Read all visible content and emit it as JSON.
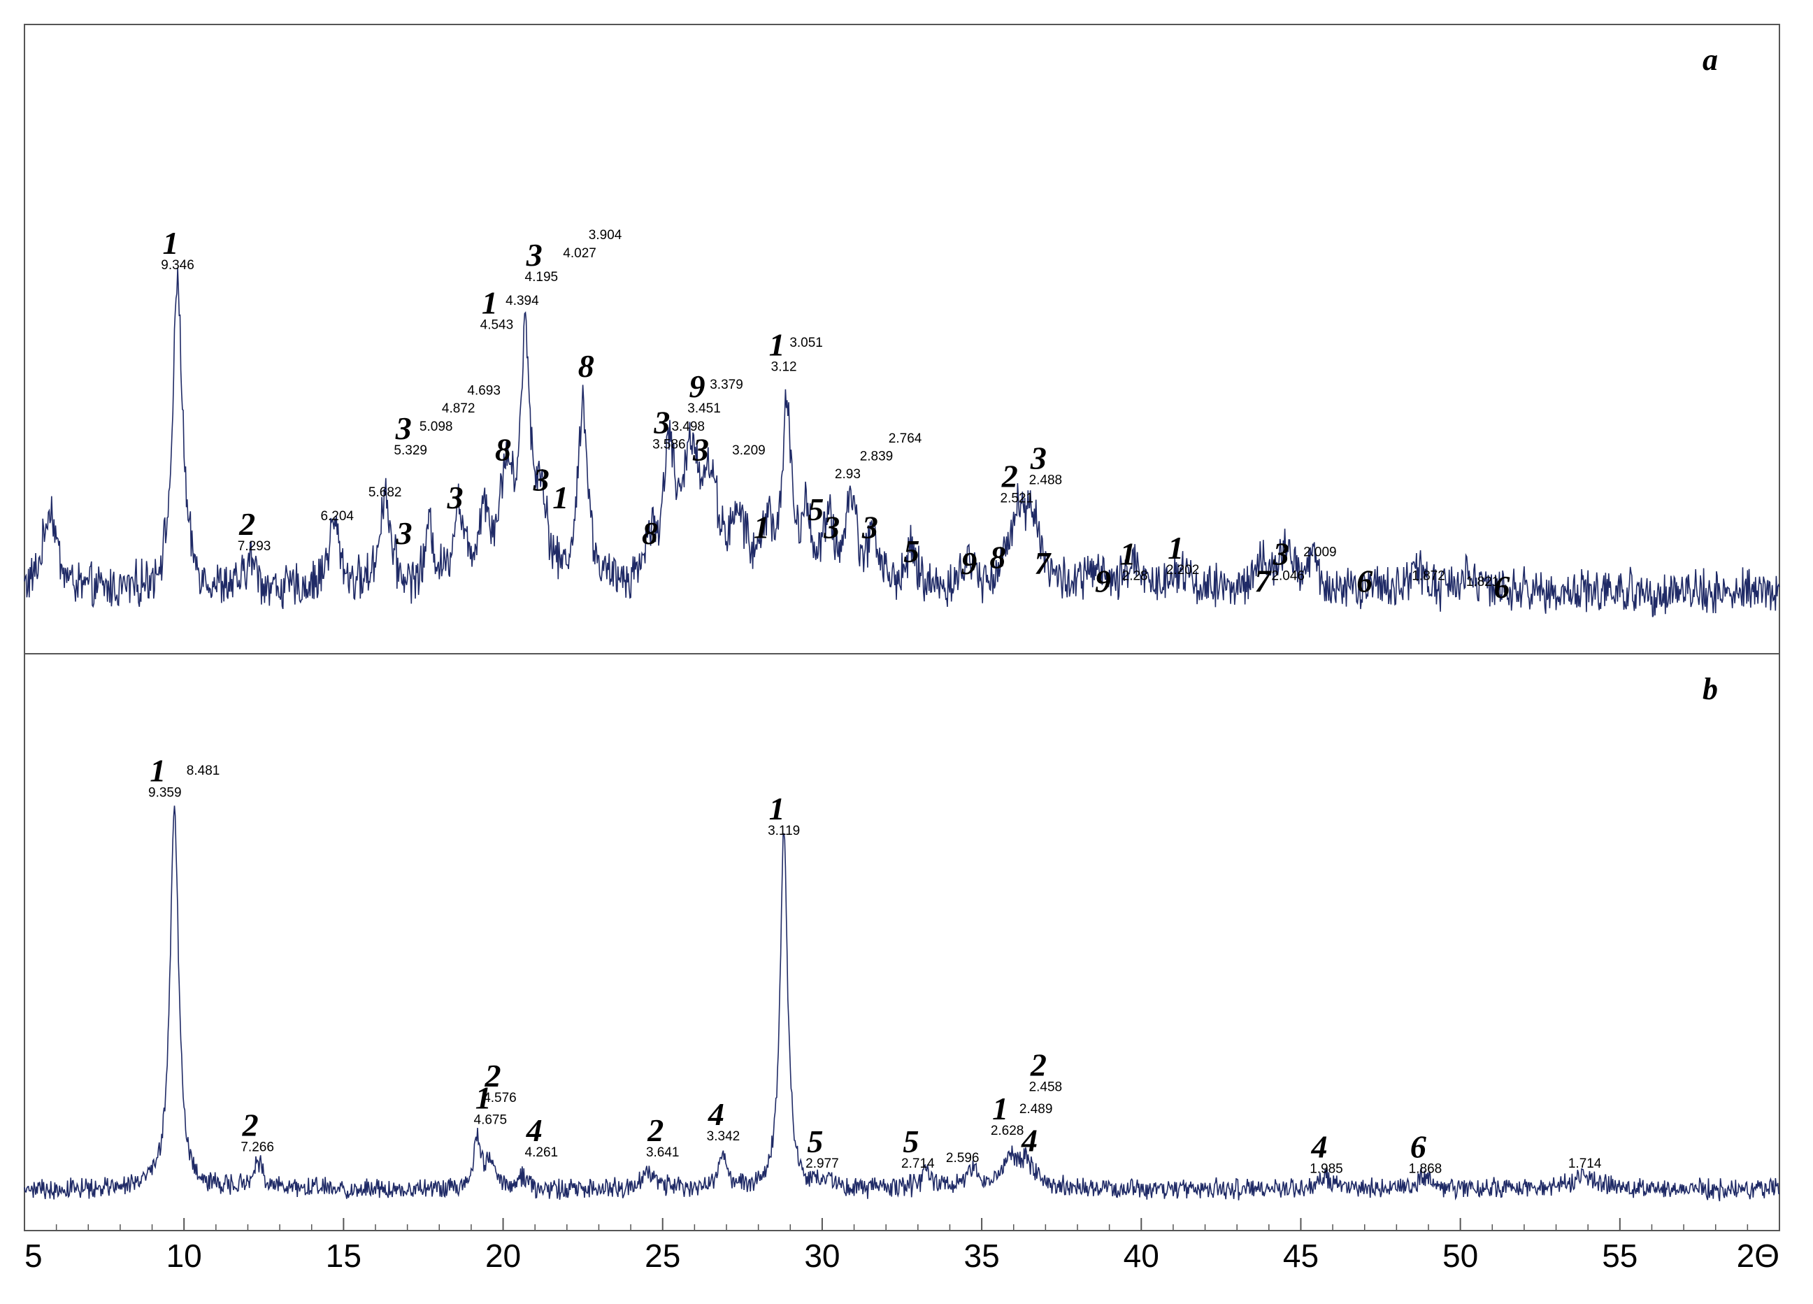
{
  "colors": {
    "trace": "#1f2a66",
    "frame": "#555555",
    "text": "#000000",
    "background": "#ffffff"
  },
  "chart_data": {
    "type": "line",
    "xlabel": "2Θ",
    "xlim": [
      5,
      60
    ],
    "x_ticks": [
      5,
      10,
      15,
      20,
      25,
      30,
      35,
      40,
      45,
      50,
      55,
      60
    ],
    "x_tick_labels": [
      "5",
      "10",
      "15",
      "20",
      "25",
      "30",
      "35",
      "40",
      "45",
      "50",
      "55",
      "2Θ"
    ],
    "panels": [
      {
        "id": "a",
        "label": "a",
        "baseline": 8,
        "noise": 3,
        "ylim": [
          0,
          100
        ],
        "peaks": [
          {
            "x": 5.8,
            "h": 14,
            "w": 0.25
          },
          {
            "x": 9.8,
            "h": 52,
            "w": 0.18
          },
          {
            "x": 12.1,
            "h": 5,
            "w": 0.2
          },
          {
            "x": 14.7,
            "h": 11,
            "w": 0.22
          },
          {
            "x": 16.3,
            "h": 16,
            "w": 0.2
          },
          {
            "x": 17.7,
            "h": 10,
            "w": 0.15
          },
          {
            "x": 18.6,
            "h": 13,
            "w": 0.2
          },
          {
            "x": 19.4,
            "h": 12,
            "w": 0.2
          },
          {
            "x": 20.1,
            "h": 18,
            "w": 0.25
          },
          {
            "x": 20.7,
            "h": 40,
            "w": 0.18
          },
          {
            "x": 21.2,
            "h": 14,
            "w": 0.2
          },
          {
            "x": 22.5,
            "h": 31,
            "w": 0.18
          },
          {
            "x": 24.6,
            "h": 7,
            "w": 0.2
          },
          {
            "x": 25.2,
            "h": 22,
            "w": 0.2
          },
          {
            "x": 25.9,
            "h": 21,
            "w": 0.3
          },
          {
            "x": 26.5,
            "h": 15,
            "w": 0.3
          },
          {
            "x": 27.4,
            "h": 10,
            "w": 0.3
          },
          {
            "x": 28.3,
            "h": 10,
            "w": 0.2
          },
          {
            "x": 28.9,
            "h": 30,
            "w": 0.15
          },
          {
            "x": 29.5,
            "h": 11,
            "w": 0.2
          },
          {
            "x": 30.2,
            "h": 10,
            "w": 0.2
          },
          {
            "x": 30.9,
            "h": 15,
            "w": 0.2
          },
          {
            "x": 31.6,
            "h": 9,
            "w": 0.2
          },
          {
            "x": 32.8,
            "h": 6,
            "w": 0.2
          },
          {
            "x": 34.6,
            "h": 5,
            "w": 0.2
          },
          {
            "x": 36.1,
            "h": 12,
            "w": 0.3
          },
          {
            "x": 36.6,
            "h": 11,
            "w": 0.3
          },
          {
            "x": 38.5,
            "h": 3,
            "w": 0.3
          },
          {
            "x": 39.8,
            "h": 5,
            "w": 0.25
          },
          {
            "x": 41.2,
            "h": 4,
            "w": 0.3
          },
          {
            "x": 43.8,
            "h": 4,
            "w": 0.3
          },
          {
            "x": 44.5,
            "h": 6,
            "w": 0.25
          },
          {
            "x": 45.3,
            "h": 5,
            "w": 0.25
          },
          {
            "x": 48.6,
            "h": 4,
            "w": 0.3
          },
          {
            "x": 50.2,
            "h": 3,
            "w": 0.3
          }
        ],
        "annotations": [
          {
            "x": 9.8,
            "phase": "1",
            "d": "9.346",
            "y": 62
          },
          {
            "x": 12.2,
            "phase": "2",
            "d": "7.293",
            "y": 15
          },
          {
            "x": 14.8,
            "phase": "",
            "d": "6.204",
            "y": 20
          },
          {
            "x": 16.3,
            "phase": "",
            "d": "5.682",
            "y": 24
          },
          {
            "x": 17.1,
            "phase": "3",
            "d": "5.329",
            "y": 31
          },
          {
            "x": 17.9,
            "phase": "",
            "d": "5.098",
            "y": 35
          },
          {
            "x": 18.6,
            "phase": "",
            "d": "4.872",
            "y": 38
          },
          {
            "x": 19.4,
            "phase": "",
            "d": "4.693",
            "y": 41
          },
          {
            "x": 19.8,
            "phase": "1",
            "d": "4.543",
            "y": 52
          },
          {
            "x": 20.6,
            "phase": "",
            "d": "4.394",
            "y": 56
          },
          {
            "x": 21.2,
            "phase": "3",
            "d": "4.195",
            "y": 60
          },
          {
            "x": 22.4,
            "phase": "",
            "d": "4.027",
            "y": 64
          },
          {
            "x": 23.2,
            "phase": "",
            "d": "3.904",
            "y": 67
          },
          {
            "x": 25.2,
            "phase": "3",
            "d": "3.586",
            "y": 32
          },
          {
            "x": 25.8,
            "phase": "",
            "d": "3.498",
            "y": 35
          },
          {
            "x": 26.3,
            "phase": "9",
            "d": "3.451",
            "y": 38
          },
          {
            "x": 27.0,
            "phase": "",
            "d": "3.379",
            "y": 42
          },
          {
            "x": 27.7,
            "phase": "",
            "d": "3.209",
            "y": 31
          },
          {
            "x": 28.8,
            "phase": "1",
            "d": "3.12",
            "y": 45
          },
          {
            "x": 29.5,
            "phase": "",
            "d": "3.051",
            "y": 49
          },
          {
            "x": 30.8,
            "phase": "",
            "d": "2.93",
            "y": 27
          },
          {
            "x": 31.7,
            "phase": "",
            "d": "2.839",
            "y": 30
          },
          {
            "x": 32.6,
            "phase": "",
            "d": "2.764",
            "y": 33
          },
          {
            "x": 36.1,
            "phase": "2",
            "d": "2.521",
            "y": 23
          },
          {
            "x": 37.0,
            "phase": "3",
            "d": "2.488",
            "y": 26
          },
          {
            "x": 39.8,
            "phase": "1",
            "d": "2.28",
            "y": 10
          },
          {
            "x": 41.3,
            "phase": "1",
            "d": "2.202",
            "y": 11
          },
          {
            "x": 44.6,
            "phase": "3",
            "d": "2.046",
            "y": 10
          },
          {
            "x": 45.6,
            "phase": "",
            "d": "2.009",
            "y": 14
          },
          {
            "x": 49.0,
            "phase": "",
            "d": "1.872",
            "y": 10
          },
          {
            "x": 50.7,
            "phase": "",
            "d": "1.821",
            "y": 9
          }
        ],
        "phase_only_labels": [
          {
            "x": 16.9,
            "phase": "3",
            "y": 16
          },
          {
            "x": 18.5,
            "phase": "3",
            "y": 22
          },
          {
            "x": 20.0,
            "phase": "8",
            "y": 30
          },
          {
            "x": 21.2,
            "phase": "3",
            "y": 25
          },
          {
            "x": 21.8,
            "phase": "1",
            "y": 22
          },
          {
            "x": 22.6,
            "phase": "8",
            "y": 44
          },
          {
            "x": 24.6,
            "phase": "8",
            "y": 16
          },
          {
            "x": 26.2,
            "phase": "3",
            "y": 30
          },
          {
            "x": 28.1,
            "phase": "1",
            "y": 17
          },
          {
            "x": 29.8,
            "phase": "5",
            "y": 20
          },
          {
            "x": 30.3,
            "phase": "3",
            "y": 17
          },
          {
            "x": 31.5,
            "phase": "3",
            "y": 17
          },
          {
            "x": 32.8,
            "phase": "5",
            "y": 13
          },
          {
            "x": 34.6,
            "phase": "9",
            "y": 11
          },
          {
            "x": 35.5,
            "phase": "8",
            "y": 12
          },
          {
            "x": 36.9,
            "phase": "7",
            "y": 11
          },
          {
            "x": 38.8,
            "phase": "9",
            "y": 8
          },
          {
            "x": 43.8,
            "phase": "7",
            "y": 8
          },
          {
            "x": 47.0,
            "phase": "6",
            "y": 8
          },
          {
            "x": 51.3,
            "phase": "6",
            "y": 7
          }
        ]
      },
      {
        "id": "b",
        "label": "b",
        "baseline": 5,
        "noise": 1.5,
        "ylim": [
          0,
          100
        ],
        "peaks": [
          {
            "x": 9.7,
            "h": 70,
            "w": 0.16
          },
          {
            "x": 12.3,
            "h": 5,
            "w": 0.2
          },
          {
            "x": 19.2,
            "h": 9,
            "w": 0.15
          },
          {
            "x": 19.6,
            "h": 5,
            "w": 0.15
          },
          {
            "x": 20.6,
            "h": 2,
            "w": 0.2
          },
          {
            "x": 24.6,
            "h": 3,
            "w": 0.3
          },
          {
            "x": 26.9,
            "h": 6,
            "w": 0.15
          },
          {
            "x": 28.8,
            "h": 66,
            "w": 0.14
          },
          {
            "x": 30.1,
            "h": 2,
            "w": 0.2
          },
          {
            "x": 33.3,
            "h": 3,
            "w": 0.2
          },
          {
            "x": 34.7,
            "h": 3,
            "w": 0.2
          },
          {
            "x": 35.9,
            "h": 5,
            "w": 0.35
          },
          {
            "x": 36.4,
            "h": 4,
            "w": 0.3
          },
          {
            "x": 45.8,
            "h": 2,
            "w": 0.3
          },
          {
            "x": 48.9,
            "h": 2,
            "w": 0.3
          },
          {
            "x": 53.9,
            "h": 2,
            "w": 0.6
          }
        ],
        "annotations": [
          {
            "x": 9.4,
            "phase": "1",
            "d": "9.359",
            "y": 77
          },
          {
            "x": 10.6,
            "phase": "",
            "d": "8.481",
            "y": 81
          },
          {
            "x": 12.3,
            "phase": "2",
            "d": "7.266",
            "y": 12
          },
          {
            "x": 19.6,
            "phase": "1",
            "d": "4.675",
            "y": 17
          },
          {
            "x": 19.9,
            "phase": "2",
            "d": "4.576",
            "y": 21
          },
          {
            "x": 21.2,
            "phase": "4",
            "d": "4.261",
            "y": 11
          },
          {
            "x": 25.0,
            "phase": "2",
            "d": "3.641",
            "y": 11
          },
          {
            "x": 26.9,
            "phase": "4",
            "d": "3.342",
            "y": 14
          },
          {
            "x": 28.8,
            "phase": "1",
            "d": "3.119",
            "y": 70
          },
          {
            "x": 30.0,
            "phase": "5",
            "d": "2.977",
            "y": 9
          },
          {
            "x": 33.0,
            "phase": "5",
            "d": "2.714",
            "y": 9
          },
          {
            "x": 34.4,
            "phase": "",
            "d": "2.596",
            "y": 10
          },
          {
            "x": 35.8,
            "phase": "1",
            "d": "2.628",
            "y": 15
          },
          {
            "x": 36.7,
            "phase": "",
            "d": "2.489",
            "y": 19
          },
          {
            "x": 37.0,
            "phase": "2",
            "d": "2.458",
            "y": 23
          },
          {
            "x": 45.8,
            "phase": "4",
            "d": "1.985",
            "y": 8
          },
          {
            "x": 48.9,
            "phase": "6",
            "d": "1.868",
            "y": 8
          },
          {
            "x": 53.9,
            "phase": "",
            "d": "1.714",
            "y": 9
          }
        ],
        "phase_only_labels": [
          {
            "x": 36.5,
            "phase": "4",
            "y": 12
          }
        ]
      }
    ]
  }
}
